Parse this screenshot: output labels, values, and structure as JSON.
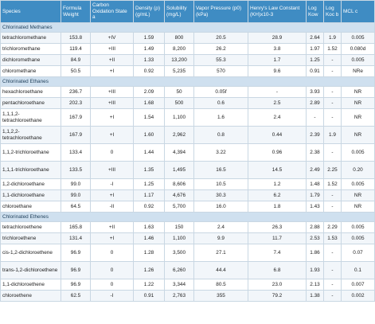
{
  "headers": [
    "Species",
    "Formula Weight",
    "Carbon Oxidation State a",
    "Density (ρ) (g/mL)",
    "Solubility (mg/L)",
    "Vapor Pressure (p0) (kPa)",
    "Henry's Law Constant (KH)x10-3",
    "Log Kow",
    "Log Koc b",
    "MCL c"
  ],
  "sections": [
    {
      "title": "Chlorinated Methanes",
      "rows": [
        [
          "tetrachloromethane",
          "153.8",
          "+IV",
          "1.59",
          "800",
          "20.5",
          "28.9",
          "2.64",
          "1.9",
          "0.005"
        ],
        [
          "trichloromethane",
          "119.4",
          "+III",
          "1.49",
          "8,200",
          "26.2",
          "3.8",
          "1.97",
          "1.52",
          "0.080d"
        ],
        [
          "dichloromethane",
          "84.9",
          "+II",
          "1.33",
          "13,200",
          "55.3",
          "1.7",
          "1.25",
          "-",
          "0.005"
        ],
        [
          "chloromethane",
          "50.5",
          "+I",
          "0.92",
          "5,235",
          "570",
          "9.6",
          "0.91",
          "-",
          "NRe"
        ]
      ]
    },
    {
      "title": "Chlorinated Ethanes",
      "rows": [
        [
          "hexachloroethane",
          "236.7",
          "+III",
          "2.09",
          "50",
          "0.05f",
          "-",
          "3.93",
          "-",
          "NR"
        ],
        [
          "pentachloroethane",
          "202.3",
          "+III",
          "1.68",
          "500",
          "0.6",
          "2.5",
          "2.89",
          "-",
          "NR"
        ],
        [
          "1,1,1,2-tetrachloroethane",
          "167.9",
          "+I",
          "1.54",
          "1,100",
          "1.6",
          "2.4",
          "-",
          "-",
          "NR"
        ],
        [
          "1,1,2,2-tetrachloroethane",
          "167.9",
          "+I",
          "1.60",
          "2,962",
          "0.8",
          "0.44",
          "2.39",
          "1.9",
          "NR"
        ],
        [
          "1,1,2-trichloroethane",
          "133.4",
          "0",
          "1.44",
          "4,394",
          "3.22",
          "0.96",
          "2.38",
          "-",
          "0.005"
        ],
        [
          "1,1,1-trichloroethane",
          "133.5",
          "+III",
          "1.35",
          "1,495",
          "16.5",
          "14.5",
          "2.49",
          "2.25",
          "0.20"
        ],
        [
          "1,2-dichloroethane",
          "99.0",
          "-I",
          "1.25",
          "8,606",
          "10.5",
          "1.2",
          "1.48",
          "1.52",
          "0.005"
        ],
        [
          "1,1-dichloroethane",
          "99.0",
          "+I",
          "1.17",
          "4,676",
          "30.3",
          "6.2",
          "1.79",
          "-",
          "NR"
        ],
        [
          "chloroethane",
          "64.5",
          "-II",
          "0.92",
          "5,700",
          "16.0",
          "1.8",
          "1.43",
          "-",
          "NR"
        ]
      ]
    },
    {
      "title": "Chlorinated Ethenes",
      "rows": [
        [
          "tetrachloroethene",
          "165.8",
          "+II",
          "1.63",
          "150",
          "2.4",
          "26.3",
          "2.88",
          "2.29",
          "0.005"
        ],
        [
          "trichloroethene",
          "131.4",
          "+I",
          "1.46",
          "1,100",
          "9.9",
          "11.7",
          "2.53",
          "1.53",
          "0.005"
        ],
        [
          "cis-1,2-dichloroethene",
          "96.9",
          "0",
          "1.28",
          "3,500",
          "27.1",
          "7.4",
          "1.86",
          "-",
          "0.07"
        ],
        [
          "trans-1,2-dichloroethene",
          "96.9",
          "0",
          "1.26",
          "6,260",
          "44.4",
          "6.8",
          "1.93",
          "-",
          "0.1"
        ],
        [
          "1,1-dichloroethene",
          "96.9",
          "0",
          "1.22",
          "3,344",
          "80.5",
          "23.0",
          "2.13",
          "-",
          "0.007"
        ],
        [
          "chloroethene",
          "62.5",
          "-I",
          "0.91",
          "2,763",
          "355",
          "79.2",
          "1.38",
          "-",
          "0.002"
        ]
      ]
    }
  ]
}
